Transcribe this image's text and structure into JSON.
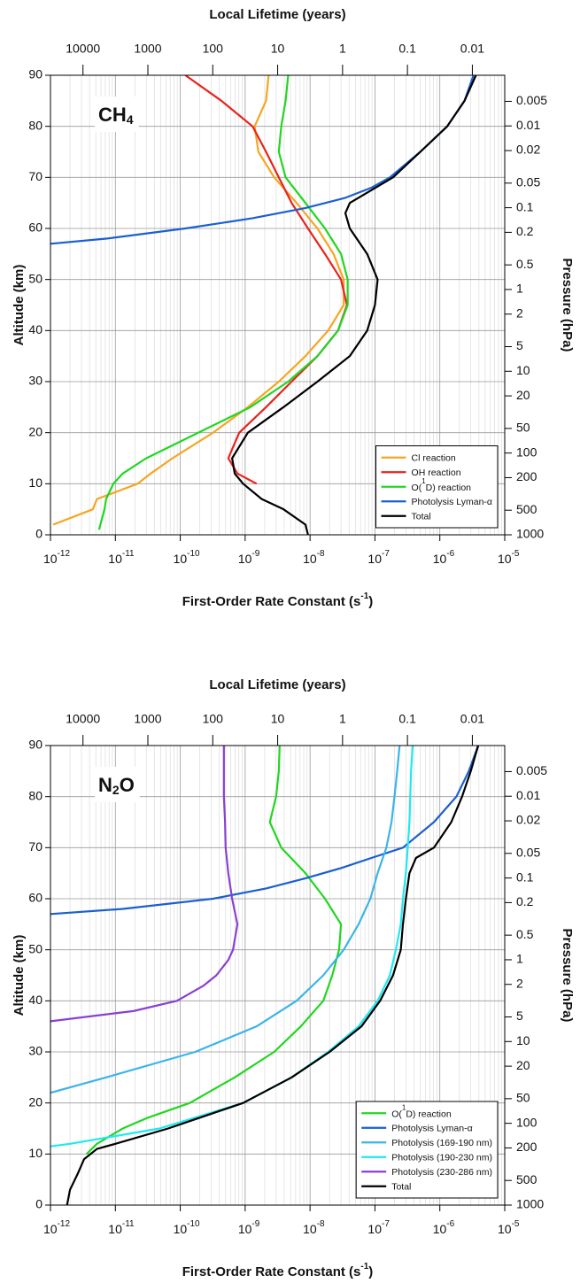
{
  "chart_data": [
    {
      "type": "line",
      "panel_label": [
        "CH",
        "4"
      ],
      "x2label": "Local Lifetime (years)",
      "xlabel": [
        "First-Order Rate Constant (s",
        "-1",
        ")"
      ],
      "ylabel": "Altitude (km)",
      "y2label": "Pressure (hPa)",
      "xscale": "log",
      "xlim": [
        1e-12,
        1e-05
      ],
      "xticks": [
        {
          "value": 1e-12,
          "label": "10",
          "exponent": "-12"
        },
        {
          "value": 1e-11,
          "label": "10",
          "exponent": "-11"
        },
        {
          "value": 1e-10,
          "label": "10",
          "exponent": "-10"
        },
        {
          "value": 1e-09,
          "label": "10",
          "exponent": "-9"
        },
        {
          "value": 1e-08,
          "label": "10",
          "exponent": "-8"
        },
        {
          "value": 1e-07,
          "label": "10",
          "exponent": "-7"
        },
        {
          "value": 1e-06,
          "label": "10",
          "exponent": "-6"
        },
        {
          "value": 1e-05,
          "label": "10",
          "exponent": "-5"
        }
      ],
      "x2scale": "log",
      "x2lim": [
        31688,
        0.0031688
      ],
      "x2ticks": [
        10000,
        1000,
        100,
        10,
        1,
        0.1,
        0.01
      ],
      "ylim": [
        0,
        90
      ],
      "yticks": [
        0,
        10,
        20,
        30,
        40,
        50,
        60,
        70,
        80,
        90
      ],
      "y2scale": "log",
      "y2lim": [
        1000,
        0.0024
      ],
      "y2ticks": [
        0.005,
        0.01,
        0.02,
        0.05,
        0.1,
        0.2,
        0.5,
        1,
        2,
        5,
        10,
        20,
        50,
        100,
        200,
        500,
        1000
      ],
      "grid": true,
      "minor_grid": true,
      "legend": "lower right",
      "series": [
        {
          "name": "Cl reaction",
          "color": "#f5a623",
          "y": [
            2,
            5,
            7,
            10,
            12,
            15,
            20,
            25,
            30,
            35,
            40,
            45,
            50,
            55,
            60,
            65,
            70,
            75,
            80,
            85,
            90
          ],
          "values": [
            1.1e-12,
            4.5e-12,
            5.2e-12,
            2.2e-11,
            3.5e-11,
            7.6e-11,
            3.2e-10,
            1.1e-09,
            3.3e-09,
            8.5e-09,
            1.9e-08,
            3.3e-08,
            3.3e-08,
            2.3e-08,
            1.3e-08,
            6.2e-09,
            2.8e-09,
            1.6e-09,
            1.4e-09,
            2.1e-09,
            2.3e-09
          ]
        },
        {
          "name": "OH reaction",
          "color": "#e8231c",
          "y": [
            10,
            12,
            15,
            20,
            25,
            30,
            35,
            40,
            45,
            50,
            55,
            60,
            65,
            70,
            75,
            80,
            85,
            90
          ],
          "values": [
            1.5e-09,
            7.6e-10,
            5.5e-10,
            8.1e-10,
            2.1e-09,
            5.2e-09,
            1.3e-08,
            2.7e-08,
            3.7e-08,
            3e-08,
            1.7e-08,
            9.3e-09,
            5.2e-09,
            3.3e-09,
            2.1e-09,
            1.3e-09,
            4.3e-10,
            1.2e-10
          ]
        },
        {
          "name": [
            "O(",
            "1",
            "D) reaction"
          ],
          "color": "#22d622",
          "y": [
            1,
            5,
            7,
            10,
            12,
            15,
            20,
            25,
            30,
            35,
            40,
            45,
            50,
            55,
            60,
            65,
            70,
            75,
            80,
            85,
            90
          ],
          "values": [
            5.6e-12,
            6.8e-12,
            7.2e-12,
            9.3e-12,
            1.3e-11,
            3e-11,
            1.9e-10,
            1.2e-09,
            4.6e-09,
            1.3e-08,
            2.7e-08,
            3.8e-08,
            3.8e-08,
            3e-08,
            1.7e-08,
            8.5e-09,
            4.2e-09,
            3.3e-09,
            3.6e-09,
            4.2e-09,
            4.6e-09
          ]
        },
        {
          "name": "Photolysis Lyman-α",
          "color": "#1a5fd1",
          "y": [
            57,
            58,
            60,
            62,
            64,
            66,
            68,
            70,
            75,
            80,
            85,
            90
          ],
          "values": [
            1e-12,
            7.2e-12,
            1.2e-10,
            1.3e-09,
            8.5e-09,
            3.5e-08,
            8.9e-08,
            1.7e-07,
            5e-07,
            1.3e-06,
            2.4e-06,
            3.3e-06
          ]
        },
        {
          "name": "Total",
          "color": "#000000",
          "y": [
            0,
            2,
            5,
            7,
            10,
            12,
            15,
            20,
            25,
            30,
            35,
            40,
            45,
            50,
            55,
            60,
            63,
            65,
            70,
            75,
            80,
            85,
            90
          ],
          "values": [
            9.3e-09,
            8.5e-09,
            3.9e-09,
            1.8e-09,
            9.3e-10,
            6.9e-10,
            6.3e-10,
            1.1e-09,
            3.9e-09,
            1.3e-08,
            4.1e-08,
            7.6e-08,
            1e-07,
            1.1e-07,
            7.6e-08,
            4.1e-08,
            3.5e-08,
            4.1e-08,
            1.9e-07,
            5e-07,
            1.3e-06,
            2.4e-06,
            3.6e-06
          ]
        }
      ]
    },
    {
      "type": "line",
      "panel_label": [
        "N",
        "2",
        "O"
      ],
      "x2label": "Local Lifetime (years)",
      "xlabel": [
        "First-Order Rate Constant (s",
        "-1",
        ")"
      ],
      "ylabel": "Altitude (km)",
      "y2label": "Pressure (hPa)",
      "xscale": "log",
      "xlim": [
        1e-12,
        1e-05
      ],
      "xticks": [
        {
          "value": 1e-12,
          "label": "10",
          "exponent": "-12"
        },
        {
          "value": 1e-11,
          "label": "10",
          "exponent": "-11"
        },
        {
          "value": 1e-10,
          "label": "10",
          "exponent": "-10"
        },
        {
          "value": 1e-09,
          "label": "10",
          "exponent": "-9"
        },
        {
          "value": 1e-08,
          "label": "10",
          "exponent": "-8"
        },
        {
          "value": 1e-07,
          "label": "10",
          "exponent": "-7"
        },
        {
          "value": 1e-06,
          "label": "10",
          "exponent": "-6"
        },
        {
          "value": 1e-05,
          "label": "10",
          "exponent": "-5"
        }
      ],
      "x2scale": "log",
      "x2lim": [
        31688,
        0.0031688
      ],
      "x2ticks": [
        10000,
        1000,
        100,
        10,
        1,
        0.1,
        0.01
      ],
      "ylim": [
        0,
        90
      ],
      "yticks": [
        0,
        10,
        20,
        30,
        40,
        50,
        60,
        70,
        80,
        90
      ],
      "y2scale": "log",
      "y2lim": [
        1000,
        0.0024
      ],
      "y2ticks": [
        0.005,
        0.01,
        0.02,
        0.05,
        0.1,
        0.2,
        0.5,
        1,
        2,
        5,
        10,
        20,
        50,
        100,
        200,
        500,
        1000
      ],
      "grid": true,
      "minor_grid": true,
      "legend": "lower right",
      "series": [
        {
          "name": [
            "O(",
            "1",
            "D) reaction"
          ],
          "color": "#22d622",
          "y": [
            10,
            12,
            15,
            17,
            20,
            25,
            30,
            35,
            40,
            45,
            50,
            55,
            60,
            65,
            70,
            75,
            80,
            85,
            90
          ],
          "values": [
            3.6e-12,
            5.2e-12,
            1.3e-11,
            3e-11,
            1.4e-10,
            6.9e-10,
            2.8e-09,
            7.2e-09,
            1.6e-08,
            2.2e-08,
            2.8e-08,
            3e-08,
            1.7e-08,
            8.5e-09,
            3.6e-09,
            2.4e-09,
            3e-09,
            3.3e-09,
            3.4e-09
          ]
        },
        {
          "name": "Photolysis Lyman-α",
          "color": "#1a5fd1",
          "y": [
            57,
            58,
            60,
            62,
            64,
            66,
            68,
            70,
            75,
            80,
            85,
            90
          ],
          "values": [
            1e-12,
            1.3e-11,
            3.2e-10,
            2.1e-09,
            8.5e-09,
            3e-08,
            8.9e-08,
            2.7e-07,
            8.1e-07,
            1.8e-06,
            2.8e-06,
            3.9e-06
          ]
        },
        {
          "name": "Photolysis (169-190 nm)",
          "color": "#3ab4ea",
          "y": [
            22,
            25,
            30,
            35,
            40,
            45,
            50,
            55,
            60,
            65,
            70,
            75,
            80,
            85,
            90
          ],
          "values": [
            1e-12,
            7.2e-12,
            1.7e-10,
            1.5e-09,
            6.2e-09,
            1.6e-08,
            3.3e-08,
            5.6e-08,
            8.5e-08,
            1.1e-07,
            1.5e-07,
            1.8e-07,
            2e-07,
            2.2e-07,
            2.4e-07
          ]
        },
        {
          "name": "Photolysis (190-230 nm)",
          "color": "#1de9f0",
          "y": [
            11.5,
            12,
            15,
            20,
            25,
            30,
            35,
            40,
            45,
            50,
            55,
            60,
            65,
            70,
            75,
            80,
            85,
            90
          ],
          "values": [
            1e-12,
            2e-12,
            4.8e-11,
            9.3e-10,
            5.2e-09,
            1.9e-08,
            5.6e-08,
            1.1e-07,
            1.7e-07,
            2.1e-07,
            2.5e-07,
            2.7e-07,
            3e-07,
            3.2e-07,
            3.4e-07,
            3.5e-07,
            3.6e-07,
            3.8e-07
          ]
        },
        {
          "name": "Photolysis (230-286 nm)",
          "color": "#8a3fd1",
          "y": [
            36,
            38,
            40,
            43,
            45,
            48,
            50,
            55,
            60,
            65,
            70,
            75,
            80,
            85,
            90
          ],
          "values": [
            1e-12,
            1.9e-11,
            8.9e-11,
            2.3e-10,
            3.6e-10,
            5.5e-10,
            6.5e-10,
            7.6e-10,
            6.3e-10,
            5.5e-10,
            5e-10,
            4.9e-10,
            4.7e-10,
            4.7e-10,
            4.7e-10
          ]
        },
        {
          "name": "Total",
          "color": "#000000",
          "y": [
            0,
            3,
            6,
            9,
            11,
            12,
            15,
            20,
            25,
            30,
            35,
            40,
            45,
            50,
            55,
            60,
            65,
            68,
            70,
            75,
            80,
            85,
            90
          ],
          "values": [
            1.8e-12,
            2e-12,
            2.6e-12,
            3.3e-12,
            5.2e-12,
            1e-11,
            6.5e-11,
            9.3e-10,
            5.2e-09,
            2e-08,
            6.2e-08,
            1.2e-07,
            1.9e-07,
            2.5e-07,
            2.7e-07,
            3e-07,
            3.4e-07,
            4.3e-07,
            8.1e-07,
            1.5e-06,
            2.2e-06,
            3e-06,
            3.9e-06
          ]
        }
      ]
    }
  ]
}
